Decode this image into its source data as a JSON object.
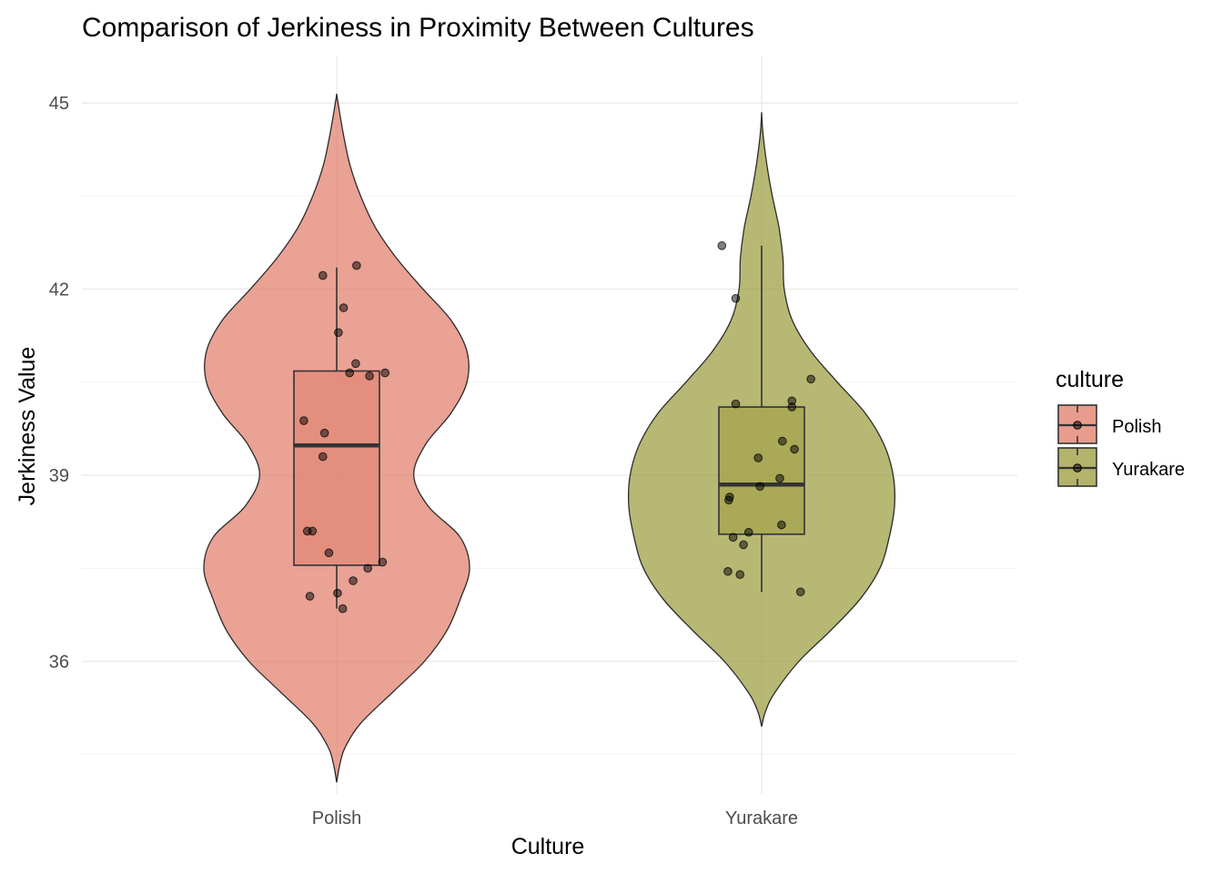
{
  "chart_data": {
    "type": "violin",
    "title": "Comparison of Jerkiness in Proximity Between Cultures",
    "xlabel": "Culture",
    "ylabel": "Jerkiness Value",
    "categories": [
      "Polish",
      "Yurakare"
    ],
    "yticks": [
      36,
      39,
      42,
      45
    ],
    "ylim": [
      33.85,
      45.75
    ],
    "grid": true,
    "legend": {
      "title": "culture",
      "position": "right",
      "entries": [
        "Polish",
        "Yurakare"
      ]
    },
    "colors": {
      "Polish": "#E07B67",
      "Yurakare": "#9A9A3A"
    },
    "series": [
      {
        "name": "Polish",
        "box": {
          "min": 36.85,
          "q1": 37.55,
          "median": 39.48,
          "q3": 40.68,
          "max": 42.35
        },
        "violin_range": [
          34.05,
          45.15
        ],
        "density": [
          [
            34.05,
            0.0
          ],
          [
            34.3,
            0.02
          ],
          [
            34.6,
            0.06
          ],
          [
            35.0,
            0.18
          ],
          [
            35.5,
            0.42
          ],
          [
            36.0,
            0.66
          ],
          [
            36.5,
            0.83
          ],
          [
            37.0,
            0.93
          ],
          [
            37.5,
            1.0
          ],
          [
            38.0,
            0.93
          ],
          [
            38.5,
            0.69
          ],
          [
            39.0,
            0.58
          ],
          [
            39.5,
            0.67
          ],
          [
            40.0,
            0.86
          ],
          [
            40.5,
            0.98
          ],
          [
            41.0,
            0.98
          ],
          [
            41.5,
            0.86
          ],
          [
            42.0,
            0.65
          ],
          [
            42.5,
            0.45
          ],
          [
            43.0,
            0.29
          ],
          [
            43.5,
            0.18
          ],
          [
            44.0,
            0.1
          ],
          [
            44.5,
            0.05
          ],
          [
            45.0,
            0.01
          ],
          [
            45.15,
            0.0
          ]
        ],
        "points": [
          [
            0.01,
            37.1
          ],
          [
            0.07,
            36.85
          ],
          [
            0.19,
            37.3
          ],
          [
            0.36,
            37.5
          ],
          [
            0.53,
            37.6
          ],
          [
            -0.31,
            37.05
          ],
          [
            -0.09,
            37.75
          ],
          [
            -0.34,
            38.1
          ],
          [
            -0.28,
            38.1
          ],
          [
            -0.16,
            39.3
          ],
          [
            -0.14,
            39.68
          ],
          [
            -0.38,
            39.88
          ],
          [
            0.15,
            40.65
          ],
          [
            0.38,
            40.6
          ],
          [
            0.56,
            40.65
          ],
          [
            0.22,
            40.8
          ],
          [
            0.02,
            41.3
          ],
          [
            0.08,
            41.7
          ],
          [
            -0.16,
            42.22
          ],
          [
            0.23,
            42.38
          ]
        ]
      },
      {
        "name": "Yurakare",
        "box": {
          "min": 37.12,
          "q1": 38.05,
          "median": 38.85,
          "q3": 40.1,
          "max": 42.7
        },
        "violin_range": [
          34.95,
          44.85
        ],
        "density": [
          [
            34.95,
            0.0
          ],
          [
            35.2,
            0.03
          ],
          [
            35.5,
            0.1
          ],
          [
            36.0,
            0.28
          ],
          [
            36.5,
            0.52
          ],
          [
            37.0,
            0.74
          ],
          [
            37.5,
            0.89
          ],
          [
            38.0,
            0.96
          ],
          [
            38.5,
            1.0
          ],
          [
            39.0,
            0.99
          ],
          [
            39.5,
            0.92
          ],
          [
            40.0,
            0.78
          ],
          [
            40.5,
            0.57
          ],
          [
            41.0,
            0.37
          ],
          [
            41.5,
            0.23
          ],
          [
            42.0,
            0.17
          ],
          [
            42.5,
            0.16
          ],
          [
            43.0,
            0.13
          ],
          [
            43.5,
            0.08
          ],
          [
            44.0,
            0.04
          ],
          [
            44.5,
            0.01
          ],
          [
            44.85,
            0.0
          ]
        ],
        "points": [
          [
            0.45,
            37.12
          ],
          [
            -0.39,
            37.45
          ],
          [
            -0.25,
            37.4
          ],
          [
            -0.21,
            37.88
          ],
          [
            -0.33,
            38.0
          ],
          [
            -0.15,
            38.08
          ],
          [
            0.23,
            38.2
          ],
          [
            -0.38,
            38.6
          ],
          [
            -0.37,
            38.65
          ],
          [
            0.21,
            38.95
          ],
          [
            -0.02,
            38.82
          ],
          [
            -0.04,
            39.28
          ],
          [
            0.24,
            39.55
          ],
          [
            0.38,
            39.42
          ],
          [
            -0.3,
            40.15
          ],
          [
            0.35,
            40.1
          ],
          [
            0.35,
            40.2
          ],
          [
            0.57,
            40.55
          ],
          [
            -0.3,
            41.85
          ],
          [
            -0.46,
            42.7
          ]
        ]
      }
    ]
  }
}
